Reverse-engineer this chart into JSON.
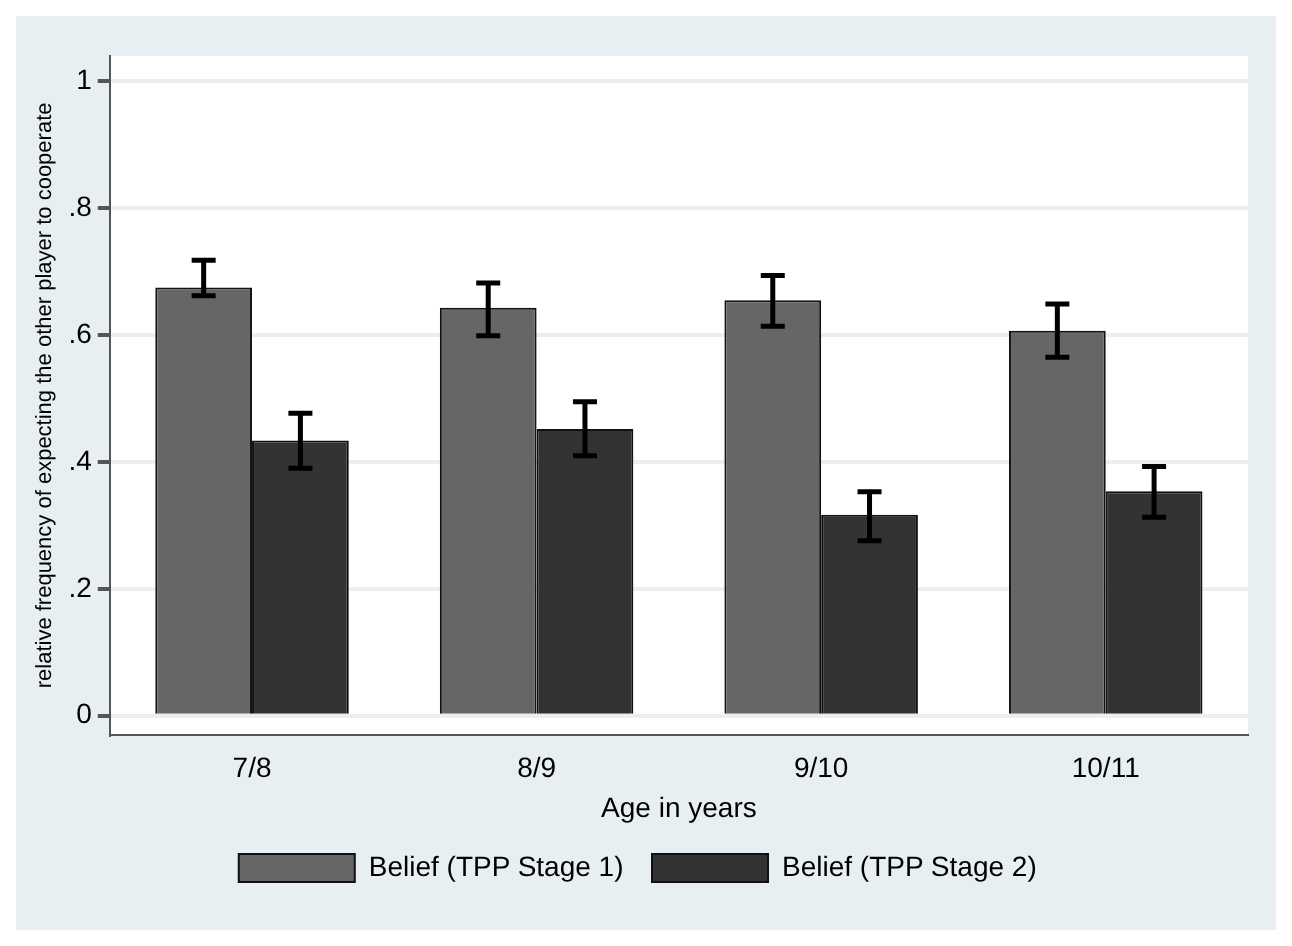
{
  "chart_data": {
    "type": "bar",
    "xlabel": "Age in years",
    "ylabel": "relative frequency of expecting the other player to cooperate",
    "categories": [
      "7/8",
      "8/9",
      "9/10",
      "10/11"
    ],
    "series": [
      {
        "name": "Belief (TPP Stage 1)",
        "color": "#666666",
        "values": [
          0.675,
          0.643,
          0.655,
          0.607
        ],
        "errors": [
          [
            0.662,
            0.718
          ],
          [
            0.599,
            0.682
          ],
          [
            0.614,
            0.694
          ],
          [
            0.565,
            0.649
          ]
        ]
      },
      {
        "name": "Belief (TPP Stage 2)",
        "color": "#333333",
        "values": [
          0.434,
          0.452,
          0.317,
          0.354
        ],
        "errors": [
          [
            0.39,
            0.477
          ],
          [
            0.41,
            0.495
          ],
          [
            0.276,
            0.353
          ],
          [
            0.313,
            0.393
          ]
        ]
      }
    ],
    "ylim": [
      -0.03,
      1.04
    ],
    "yticks": [
      0,
      {
        "value": 0.2,
        "label": ".2"
      },
      {
        "value": 0.4,
        "label": ".4"
      },
      {
        "value": 0.6,
        "label": ".6"
      },
      {
        "value": 0.8,
        "label": ".8"
      },
      1
    ],
    "grid": "y",
    "legend": "bottom"
  }
}
